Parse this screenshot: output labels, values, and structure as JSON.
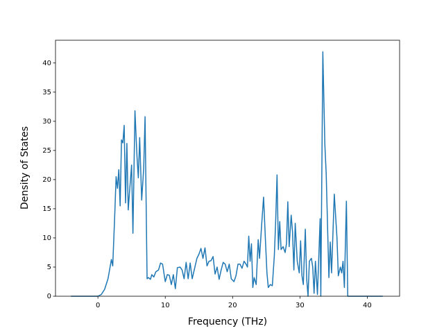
{
  "chart_data": {
    "type": "line",
    "xlabel": "Frequency (THz)",
    "ylabel": "Density of States",
    "xlim": [
      -6.3,
      44.8
    ],
    "ylim": [
      0,
      43.9
    ],
    "xticks": [
      0,
      10,
      20,
      30,
      40
    ],
    "yticks": [
      0,
      5,
      10,
      15,
      20,
      25,
      30,
      35,
      40
    ],
    "grid": false,
    "series": [
      {
        "color": "#1f77b4",
        "x": [
          -4.0,
          -2.0,
          0,
          0.5,
          1.0,
          1.5,
          2.0,
          2.2,
          2.5,
          2.7,
          2.9,
          3.1,
          3.3,
          3.5,
          3.7,
          3.9,
          4.1,
          4.3,
          4.5,
          4.7,
          5.0,
          5.2,
          5.5,
          5.8,
          6.0,
          6.2,
          6.5,
          6.8,
          7.0,
          7.3,
          7.5,
          7.8,
          8.0,
          8.3,
          8.6,
          9.0,
          9.3,
          9.6,
          10.0,
          10.3,
          10.6,
          10.9,
          11.2,
          11.5,
          11.8,
          12.2,
          12.5,
          12.8,
          13.1,
          13.4,
          13.7,
          14.0,
          14.3,
          14.7,
          15.0,
          15.3,
          15.6,
          15.9,
          16.2,
          16.5,
          16.8,
          17.1,
          17.4,
          17.7,
          18.0,
          18.3,
          18.6,
          18.9,
          19.2,
          19.5,
          19.8,
          20.2,
          20.5,
          20.8,
          21.1,
          21.4,
          21.7,
          22.0,
          22.2,
          22.4,
          22.6,
          22.8,
          23.0,
          23.2,
          23.5,
          23.8,
          24.0,
          24.3,
          24.6,
          24.9,
          25.1,
          25.3,
          25.6,
          25.9,
          26.2,
          26.4,
          26.6,
          26.8,
          27.0,
          27.2,
          27.5,
          27.8,
          28.0,
          28.2,
          28.4,
          28.7,
          28.9,
          29.1,
          29.3,
          29.6,
          29.9,
          30.1,
          30.3,
          30.5,
          30.8,
          31.0,
          31.2,
          31.4,
          31.7,
          31.9,
          32.1,
          32.3,
          32.6,
          33.0,
          33.1,
          33.4,
          33.7,
          33.9,
          34.3,
          34.5,
          34.7,
          35.1,
          35.5,
          35.7,
          36.0,
          36.2,
          36.4,
          36.6,
          36.9,
          37.1,
          42.3
        ],
        "values": [
          0,
          0,
          0,
          0.3,
          1.2,
          3,
          6.3,
          5.2,
          14,
          20.5,
          18.5,
          21.7,
          15.5,
          26.8,
          26.3,
          29.3,
          16,
          26.2,
          14.8,
          18,
          22.5,
          10.8,
          31.8,
          24,
          20.3,
          27.2,
          16.5,
          22,
          30.8,
          3,
          3.2,
          2.9,
          3.7,
          3.3,
          4.2,
          4.5,
          5.7,
          5.5,
          2.5,
          3.7,
          3.6,
          2,
          3.7,
          1.3,
          4.9,
          5,
          4.5,
          3,
          5.8,
          3,
          5.7,
          3,
          4.5,
          6.5,
          7.2,
          8.2,
          6.5,
          8.3,
          5.2,
          6,
          6.1,
          6.8,
          3.8,
          5,
          2.9,
          4.5,
          5.8,
          5.5,
          4.2,
          5.5,
          3,
          2.5,
          3.5,
          5.5,
          5.5,
          4.8,
          6,
          5.5,
          5,
          10.3,
          6,
          9,
          1.5,
          3.2,
          2,
          9.7,
          6.5,
          12,
          17,
          9,
          4,
          1.5,
          2,
          1.8,
          7,
          13,
          20.8,
          8,
          12.8,
          8,
          8.5,
          7.5,
          9,
          16.2,
          8.5,
          13.9,
          11,
          4.5,
          12.5,
          6,
          4,
          9.5,
          3.5,
          2,
          11.5,
          3,
          0,
          6,
          6.5,
          5,
          0.5,
          6,
          0.3,
          13.3,
          0,
          41.9,
          26,
          21,
          3.2,
          9.3,
          4,
          17.5,
          10,
          3.5,
          5,
          4,
          6,
          1.5,
          16.3,
          0,
          0
        ]
      }
    ]
  }
}
